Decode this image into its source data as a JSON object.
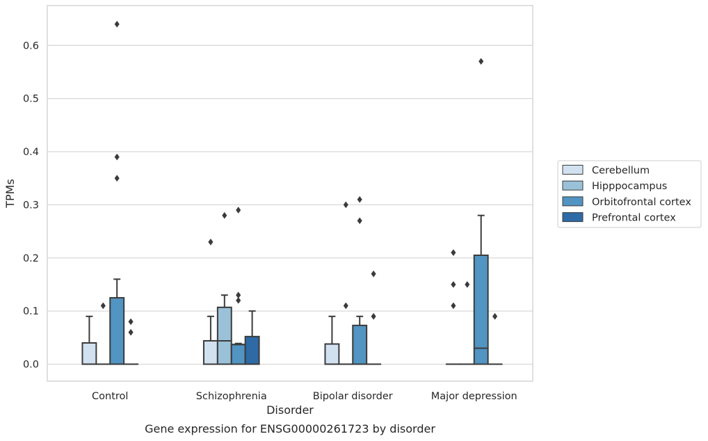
{
  "chart_data": {
    "type": "box",
    "title": "Gene expression for ENSG00000261723 by disorder",
    "xlabel": "Disorder",
    "ylabel": "TPMs",
    "ylim": [
      -0.032,
      0.675
    ],
    "yticks": [
      0.0,
      0.1,
      0.2,
      0.3,
      0.4,
      0.5,
      0.6
    ],
    "ytick_labels": [
      "0.0",
      "0.1",
      "0.2",
      "0.3",
      "0.4",
      "0.5",
      "0.6"
    ],
    "categories": [
      "Control",
      "Schizophrenia",
      "Bipolar disorder",
      "Major depression"
    ],
    "grid": "horizontal",
    "legend_position": "right",
    "series": [
      {
        "name": "Cerebellum",
        "color": "#d1e1f0",
        "boxes": [
          {
            "q1": 0.0,
            "median": 0.0,
            "q3": 0.04,
            "whislo": 0.0,
            "whishi": 0.09,
            "fliers": []
          },
          {
            "q1": 0.0,
            "median": 0.044,
            "q3": 0.044,
            "whislo": 0.0,
            "whishi": 0.09,
            "fliers": [
              0.23
            ]
          },
          {
            "q1": 0.0,
            "median": 0.0,
            "q3": 0.038,
            "whislo": 0.0,
            "whishi": 0.09,
            "fliers": []
          },
          {
            "q1": 0.0,
            "median": 0.0,
            "q3": 0.0,
            "whislo": 0.0,
            "whishi": 0.0,
            "fliers": [
              0.11,
              0.15,
              0.21
            ]
          }
        ]
      },
      {
        "name": "Hipppocampus",
        "color": "#9ac1d8",
        "boxes": [
          {
            "q1": 0.0,
            "median": 0.0,
            "q3": 0.0,
            "whislo": 0.0,
            "whishi": 0.0,
            "fliers": [
              0.11
            ]
          },
          {
            "q1": 0.0,
            "median": 0.044,
            "q3": 0.107,
            "whislo": 0.0,
            "whishi": 0.13,
            "fliers": [
              0.28
            ]
          },
          {
            "q1": 0.0,
            "median": 0.0,
            "q3": 0.0,
            "whislo": 0.0,
            "whishi": 0.0,
            "fliers": [
              0.11,
              0.3
            ]
          },
          {
            "q1": 0.0,
            "median": 0.0,
            "q3": 0.0,
            "whislo": 0.0,
            "whishi": 0.0,
            "fliers": [
              0.15
            ]
          }
        ]
      },
      {
        "name": "Orbitofrontal cortex",
        "color": "#5294c2",
        "boxes": [
          {
            "q1": 0.0,
            "median": 0.0,
            "q3": 0.125,
            "whislo": 0.0,
            "whishi": 0.16,
            "fliers": [
              0.35,
              0.39,
              0.64
            ]
          },
          {
            "q1": 0.0,
            "median": 0.037,
            "q3": 0.037,
            "whislo": 0.0,
            "whishi": 0.039,
            "fliers": [
              0.12,
              0.13,
              0.29
            ]
          },
          {
            "q1": 0.0,
            "median": 0.0,
            "q3": 0.073,
            "whislo": 0.0,
            "whishi": 0.09,
            "fliers": [
              0.27,
              0.31
            ]
          },
          {
            "q1": 0.0,
            "median": 0.03,
            "q3": 0.205,
            "whislo": 0.0,
            "whishi": 0.28,
            "fliers": [
              0.57
            ]
          }
        ]
      },
      {
        "name": "Prefrontal cortex",
        "color": "#2d6aa6",
        "boxes": [
          {
            "q1": 0.0,
            "median": 0.0,
            "q3": 0.0,
            "whislo": 0.0,
            "whishi": 0.0,
            "fliers": [
              0.06,
              0.08
            ]
          },
          {
            "q1": 0.0,
            "median": 0.0,
            "q3": 0.052,
            "whislo": 0.0,
            "whishi": 0.1,
            "fliers": []
          },
          {
            "q1": 0.0,
            "median": 0.0,
            "q3": 0.0,
            "whislo": 0.0,
            "whishi": 0.0,
            "fliers": [
              0.09,
              0.17
            ]
          },
          {
            "q1": 0.0,
            "median": 0.0,
            "q3": 0.0,
            "whislo": 0.0,
            "whishi": 0.0,
            "fliers": [
              0.09
            ]
          }
        ]
      }
    ]
  }
}
